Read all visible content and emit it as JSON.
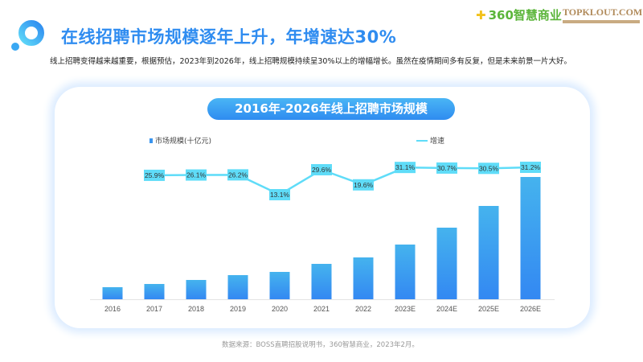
{
  "header": {
    "title": "在线招聘市场规模逐年上升，年增速达30%",
    "subtitle": "线上招聘变得越来越重要，根据预估，2023年到2026年，线上招聘规模持续呈30%以上的增幅增长。虽然在疫情期间多有反复，但是未来前景一片大好。",
    "brand_logos": [
      "360智慧商业",
      "TOPKLOUT.COM"
    ]
  },
  "source": "数据来源：BOSS直聘招股说明书，360智慧商业，2023年2月。",
  "colors": {
    "title": "#2f8cf0",
    "bar_top": "#45b3ee",
    "bar_bottom": "#3388f2",
    "line": "#5fdcf8"
  },
  "chart_data": {
    "type": "bar+line",
    "title": "2016年-2026年线上招聘市场规模",
    "categories": [
      "2016",
      "2017",
      "2018",
      "2019",
      "2020",
      "2021",
      "2022",
      "2023E",
      "2024E",
      "2025E",
      "2026E"
    ],
    "series": [
      {
        "name": "市场规模(十亿元)",
        "type": "bar",
        "values": [
          15,
          19,
          24,
          30,
          34,
          44,
          52,
          68,
          89,
          116,
          152
        ]
      },
      {
        "name": "增速",
        "type": "line",
        "values": [
          null,
          25.9,
          26.1,
          26.2,
          13.1,
          29.6,
          19.6,
          31.1,
          30.7,
          30.5,
          31.2
        ],
        "labels": [
          "",
          "25.9%",
          "26.1%",
          "26.2%",
          "13.1%",
          "29.6%",
          "19.6%",
          "31.1%",
          "30.7%",
          "30.5%",
          "31.2%"
        ]
      }
    ],
    "legend": "top",
    "grid": false
  }
}
